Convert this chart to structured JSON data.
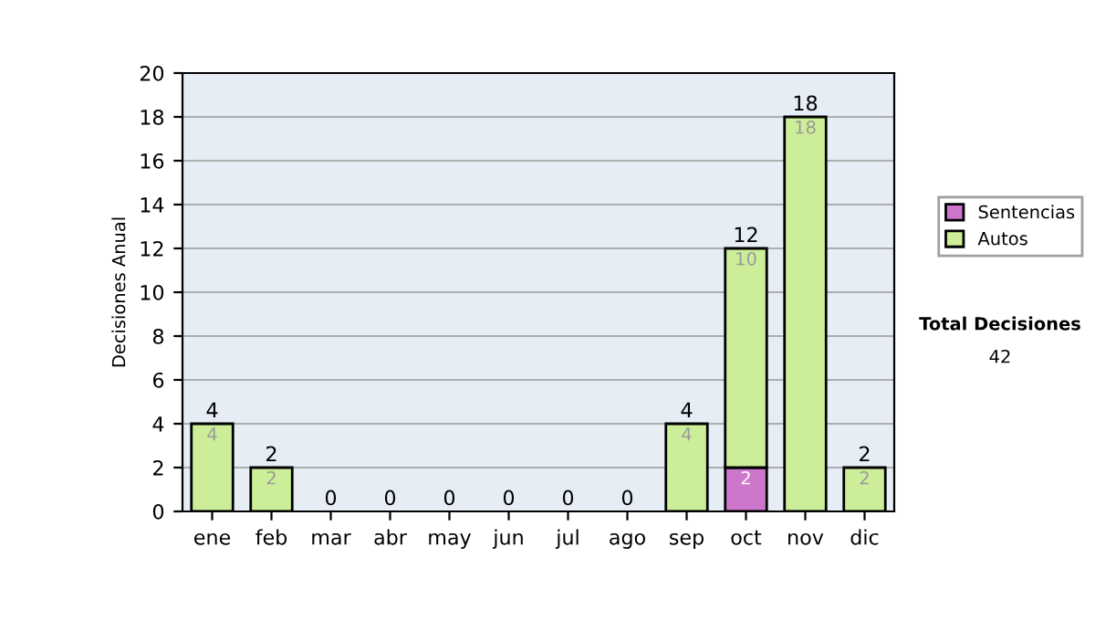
{
  "chart_data": {
    "type": "bar",
    "ylabel": "Decisiones Anual",
    "categories": [
      "ene",
      "feb",
      "mar",
      "abr",
      "may",
      "jun",
      "jul",
      "ago",
      "sep",
      "oct",
      "nov",
      "dic"
    ],
    "stacked": true,
    "series": [
      {
        "name": "Sentencias",
        "color": "#cc77cc",
        "values": [
          0,
          0,
          0,
          0,
          0,
          0,
          0,
          0,
          0,
          2,
          0,
          0
        ],
        "value_labels": [
          null,
          null,
          null,
          null,
          null,
          null,
          null,
          null,
          null,
          "2",
          null,
          null
        ]
      },
      {
        "name": "Autos",
        "color": "#ccee99",
        "values": [
          4,
          2,
          0,
          0,
          0,
          0,
          0,
          0,
          4,
          10,
          18,
          2
        ],
        "value_labels": [
          "4",
          "2",
          null,
          null,
          null,
          null,
          null,
          null,
          "4",
          "10",
          "18",
          "2"
        ]
      }
    ],
    "totals": [
      "4",
      "2",
      "0",
      "0",
      "0",
      "0",
      "0",
      "0",
      "4",
      "12",
      "18",
      "2"
    ],
    "ylim": [
      0,
      20
    ],
    "yticks": [
      0,
      2,
      4,
      6,
      8,
      10,
      12,
      14,
      16,
      18,
      20
    ],
    "grid": "y",
    "legend": "right",
    "annotations": [
      "Total Decisiones",
      "42"
    ]
  }
}
